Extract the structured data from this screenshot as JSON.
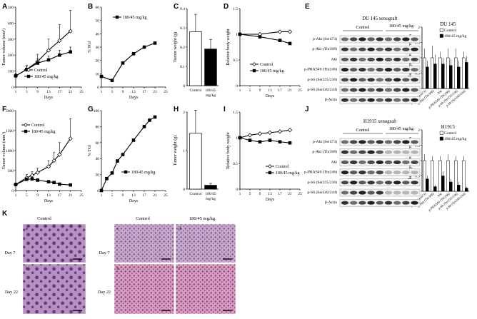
{
  "panels": {
    "A": {
      "letter": "A",
      "ylabel": "Tumor volume (mm³)",
      "xlabel": "Days",
      "legend": [
        "Control",
        "180/45 mg/kg"
      ],
      "yticks": [
        "0",
        "100",
        "200",
        "300",
        "400",
        "500"
      ],
      "xticks": [
        "1",
        "5",
        "9",
        "13",
        "17",
        "21",
        "25"
      ]
    },
    "B": {
      "letter": "B",
      "ylabel": "% TGI",
      "xlabel": "Days",
      "legend": [
        "180/45 mg/kg"
      ],
      "yticks": [
        "0",
        "10",
        "20",
        "30",
        "40",
        "50",
        "60"
      ],
      "xticks": [
        "1",
        "5",
        "9",
        "13",
        "17",
        "21",
        "25"
      ]
    },
    "C": {
      "letter": "C",
      "ylabel": "Tumor weight (g)",
      "cats": [
        "Control",
        "180/45 mg/kg"
      ],
      "yticks": [
        "0",
        "0.1",
        "0.2",
        "0.3",
        "0.4"
      ]
    },
    "D": {
      "letter": "D",
      "ylabel": "Relative body weight",
      "xlabel": "Days",
      "legend": [
        "Control",
        "180/45 mg/kg"
      ],
      "yticks": [
        "0",
        "0.5",
        "1",
        "1.5"
      ],
      "xticks": [
        "1",
        "5",
        "9",
        "13",
        "17",
        "21",
        "25"
      ]
    },
    "E": {
      "letter": "E",
      "title": "DU 145 xenograft",
      "groups": [
        "Control",
        "180/45 mg/kg"
      ],
      "rows": [
        "p-Akt (Ser473)",
        "p-Akt (Thr308)",
        "Akt",
        "p-PRAS40 (Thr246)",
        "p-S6 (Ser235/236)",
        "p-S6 (Ser240/244)",
        "β-Actin"
      ],
      "chart_title": "DU 145",
      "ylabel": "Relative protein expression",
      "legend": [
        "Control",
        "180/45 mg/kg"
      ],
      "yticks": [
        "0",
        "0.5",
        "1",
        "1.5",
        "2"
      ],
      "cats": [
        "p-Akt (Ser473)",
        "p-Akt (Thr308)",
        "Akt",
        "p-PRAS40 (Thr246)",
        "p-S6 (Ser235/236)",
        "p-S6 (Ser240/244)"
      ]
    },
    "F": {
      "letter": "F",
      "ylabel": "Tumor volume (mm³)",
      "xlabel": "Days",
      "legend": [
        "Control",
        "180/45 mg/kg"
      ],
      "yticks": [
        "0",
        "500",
        "1000",
        "1500",
        "2000"
      ],
      "xticks": [
        "1",
        "5",
        "9",
        "13",
        "17",
        "21",
        "25"
      ]
    },
    "G": {
      "letter": "G",
      "ylabel": "% TGI",
      "xlabel": "Days",
      "legend": [
        "180/45 mg/kg"
      ],
      "yticks": [
        "0",
        "20",
        "40",
        "60",
        "80",
        "100"
      ],
      "xticks": [
        "1",
        "5",
        "9",
        "13",
        "17",
        "21",
        "25"
      ]
    },
    "H": {
      "letter": "H",
      "ylabel": "Tumor weight (g)",
      "cats": [
        "Control",
        "180/45 mg/kg"
      ],
      "yticks": [
        "0",
        "1",
        "2"
      ]
    },
    "I": {
      "letter": "I",
      "ylabel": "Relative body weight",
      "xlabel": "Days",
      "legend": [
        "Control",
        "180/45 mg/kg"
      ],
      "yticks": [
        "0",
        "0.5",
        "1",
        "1.5"
      ],
      "xticks": [
        "1",
        "5",
        "9",
        "13",
        "17",
        "21",
        "25"
      ]
    },
    "J": {
      "letter": "J",
      "title": "H1915 xenograft",
      "groups": [
        "Control",
        "180/45 mg/kg"
      ],
      "rows": [
        "p-Akt (Ser473)",
        "p-Akt (Thr308)",
        "Akt",
        "p-PRAS40 (Thr246)",
        "p-S6 (Ser235/236)",
        "p-S6 (Ser240/244)",
        "β-Actin"
      ],
      "chart_title": "H1915",
      "ylabel": "Relative protein expression",
      "legend": [
        "Control",
        "180/45 mg/kg"
      ],
      "yticks": [
        "0",
        "0.5",
        "1",
        "1.5",
        "2"
      ],
      "cats": [
        "p-Akt (Ser473)",
        "p-Akt (Thr308)",
        "Akt",
        "p-PRAS40 (Thr246)",
        "p-S6 (Ser235/236)",
        "p-S6 (Ser240/244)"
      ]
    },
    "K": {
      "letter": "K",
      "left_header": "Control",
      "mid_header": "Control",
      "right_header": "180/45 mg/kg",
      "day7": "Day 7",
      "day22": "Day 22",
      "tiles": [
        "a",
        "b",
        "c",
        "d",
        "e",
        "f"
      ]
    }
  },
  "chart_data": [
    {
      "id": "A",
      "type": "line",
      "x": [
        1,
        5,
        9,
        13,
        17,
        21
      ],
      "ylim": [
        0,
        500
      ],
      "xlim": [
        1,
        25
      ],
      "series": [
        {
          "name": "Control",
          "values": [
            70,
            110,
            160,
            230,
            290,
            350
          ],
          "err": [
            15,
            25,
            45,
            70,
            100,
            130
          ],
          "marker": "open"
        },
        {
          "name": "180/45 mg/kg",
          "values": [
            70,
            110,
            150,
            170,
            200,
            220
          ],
          "err": [
            15,
            20,
            25,
            25,
            30,
            30
          ],
          "marker": "filled"
        }
      ]
    },
    {
      "id": "B",
      "type": "line",
      "x": [
        1,
        5,
        9,
        13,
        17,
        21
      ],
      "ylim": [
        0,
        60
      ],
      "xlim": [
        1,
        25
      ],
      "series": [
        {
          "name": "180/45 mg/kg",
          "values": [
            8,
            5,
            18,
            25,
            30,
            33
          ],
          "marker": "filled"
        }
      ]
    },
    {
      "id": "C",
      "type": "bar",
      "categories": [
        "Control",
        "180/45 mg/kg"
      ],
      "values": [
        0.28,
        0.19
      ],
      "err": [
        0.09,
        0.05
      ],
      "ylim": [
        0,
        0.4
      ],
      "fills": [
        "#ffffff",
        "#000000"
      ]
    },
    {
      "id": "D",
      "type": "line",
      "x": [
        1,
        9,
        17,
        21
      ],
      "ylim": [
        0,
        1.5
      ],
      "xlim": [
        1,
        25
      ],
      "series": [
        {
          "name": "Control",
          "values": [
            1.0,
            1.0,
            1.05,
            1.05
          ],
          "marker": "open"
        },
        {
          "name": "180/45 mg/kg",
          "values": [
            1.0,
            0.95,
            0.88,
            0.82
          ],
          "marker": "filled"
        }
      ]
    },
    {
      "id": "E",
      "type": "bar",
      "categories": [
        "p-Akt (Ser473)",
        "p-Akt (Thr308)",
        "Akt",
        "p-PRAS40 (Thr246)",
        "p-S6 (Ser235/236)",
        "p-S6 (Ser240/244)"
      ],
      "ylim": [
        0,
        2
      ],
      "series": [
        {
          "name": "Control",
          "values": [
            1.0,
            1.0,
            1.0,
            1.0,
            1.0,
            1.0
          ],
          "err": [
            0.3,
            0.4,
            0.2,
            0.3,
            0.3,
            0.2
          ]
        },
        {
          "name": "180/45 mg/kg",
          "values": [
            0.7,
            0.8,
            0.8,
            0.75,
            0.7,
            0.85
          ],
          "err": [
            0.2,
            0.3,
            0.2,
            0.2,
            0.2,
            0.2
          ]
        }
      ]
    },
    {
      "id": "F",
      "type": "line",
      "x": [
        1,
        5,
        7,
        9,
        13,
        15,
        17,
        21
      ],
      "ylim": [
        0,
        2000
      ],
      "xlim": [
        1,
        25
      ],
      "series": [
        {
          "name": "Control",
          "values": [
            150,
            320,
            380,
            450,
            600,
            750,
            900,
            1300
          ],
          "err": [
            40,
            80,
            90,
            110,
            150,
            200,
            300,
            500
          ],
          "marker": "open"
        },
        {
          "name": "180/45 mg/kg",
          "values": [
            150,
            280,
            290,
            260,
            220,
            200,
            160,
            140
          ],
          "err": [
            30,
            40,
            40,
            40,
            35,
            30,
            30,
            30
          ],
          "marker": "filled"
        }
      ]
    },
    {
      "id": "G",
      "type": "line",
      "x": [
        1,
        3,
        5,
        7,
        9,
        13,
        17,
        19,
        21
      ],
      "ylim": [
        0,
        100
      ],
      "xlim": [
        1,
        25
      ],
      "series": [
        {
          "name": "180/45 mg/kg",
          "values": [
            0,
            15,
            22,
            37,
            45,
            63,
            80,
            88,
            92
          ],
          "marker": "filled"
        }
      ]
    },
    {
      "id": "H",
      "type": "bar",
      "categories": [
        "Control",
        "180/45 mg/kg"
      ],
      "values": [
        1.45,
        0.1
      ],
      "err": [
        0.6,
        0.05
      ],
      "ylim": [
        0,
        2
      ],
      "fills": [
        "#ffffff",
        "#000000"
      ]
    },
    {
      "id": "I",
      "type": "line",
      "x": [
        1,
        5,
        9,
        13,
        17,
        21
      ],
      "ylim": [
        0,
        1.5
      ],
      "xlim": [
        1,
        25
      ],
      "series": [
        {
          "name": "Control",
          "values": [
            1.0,
            1.05,
            1.08,
            1.1,
            1.12,
            1.15
          ],
          "marker": "open"
        },
        {
          "name": "180/45 mg/kg",
          "values": [
            1.0,
            0.95,
            0.92,
            0.95,
            0.92,
            0.9
          ],
          "marker": "filled"
        }
      ]
    },
    {
      "id": "J",
      "type": "bar",
      "categories": [
        "p-Akt (Ser473)",
        "p-Akt (Thr308)",
        "Akt",
        "p-PRAS40 (Thr246)",
        "p-S6 (Ser235/236)",
        "p-S6 (Ser240/244)"
      ],
      "ylim": [
        0,
        2
      ],
      "series": [
        {
          "name": "Control",
          "values": [
            1.0,
            1.0,
            1.0,
            1.0,
            1.0,
            1.0
          ],
          "err": [
            0.2,
            0.15,
            0.15,
            0.2,
            0.15,
            0.15
          ]
        },
        {
          "name": "180/45 mg/kg",
          "values": [
            0.4,
            0.15,
            0.5,
            0.3,
            0.2,
            0.1
          ],
          "err": [
            0.1,
            0.05,
            0.15,
            0.1,
            0.1,
            0.05
          ]
        }
      ]
    }
  ]
}
